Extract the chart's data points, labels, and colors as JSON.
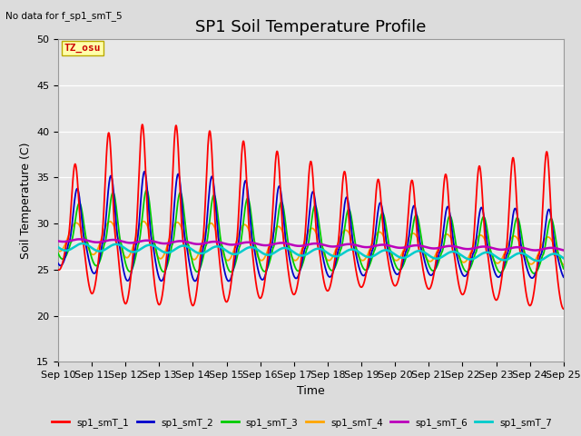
{
  "title": "SP1 Soil Temperature Profile",
  "no_data_text": "No data for f_sp1_smT_5",
  "tz_label": "TZ_osu",
  "xlabel": "Time",
  "ylabel": "Soil Temperature (C)",
  "ylim": [
    15,
    50
  ],
  "yticks": [
    15,
    20,
    25,
    30,
    35,
    40,
    45,
    50
  ],
  "xtick_labels": [
    "Sep 10",
    "Sep 11",
    "Sep 12",
    "Sep 13",
    "Sep 14",
    "Sep 15",
    "Sep 16",
    "Sep 17",
    "Sep 18",
    "Sep 19",
    "Sep 20",
    "Sep 21",
    "Sep 22",
    "Sep 23",
    "Sep 24",
    "Sep 25"
  ],
  "colors": {
    "sp1_smT_1": "#FF0000",
    "sp1_smT_2": "#0000CC",
    "sp1_smT_3": "#00CC00",
    "sp1_smT_4": "#FFA500",
    "sp1_smT_6": "#BB00BB",
    "sp1_smT_7": "#00CCCC"
  },
  "background_color": "#DCDCDC",
  "plot_bg_color": "#E8E8E8",
  "title_fontsize": 13,
  "axis_fontsize": 9,
  "tick_fontsize": 8,
  "lw_main": 1.3,
  "lw_flat": 1.8
}
